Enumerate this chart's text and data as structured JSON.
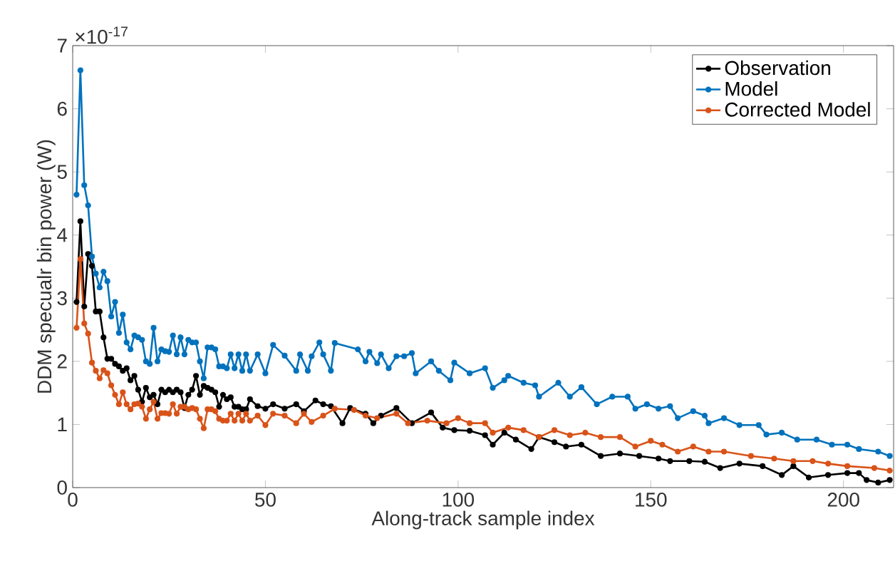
{
  "chart_data": {
    "type": "line",
    "xlabel": "Along-track sample index",
    "ylabel": "DDM specualr bin power (W)",
    "annotations": [
      "×10$^{-17}$"
    ],
    "xlim": [
      0,
      213
    ],
    "ylim": [
      0,
      7
    ],
    "xticks": [
      0,
      50,
      100,
      150,
      200
    ],
    "yticks": [
      0,
      1,
      2,
      3,
      4,
      5,
      6,
      7
    ],
    "grid": false,
    "legend": "top right",
    "marker": "circle",
    "line_style": "solid",
    "series": [
      {
        "name": "Observation",
        "color": "#000000",
        "x": [
          1,
          2,
          3,
          4,
          5,
          6,
          7,
          8,
          9,
          10,
          11,
          12,
          13,
          14,
          15,
          16,
          17,
          18,
          19,
          20,
          21,
          22,
          23,
          24,
          25,
          26,
          27,
          28,
          29,
          30,
          31,
          32,
          33,
          34,
          35,
          36,
          37,
          38,
          39,
          40,
          41,
          42,
          43,
          44,
          45,
          46,
          48,
          50,
          52,
          55,
          58,
          60,
          63,
          65,
          67,
          70,
          72,
          76,
          78,
          80,
          84,
          88,
          93,
          96,
          99,
          103,
          107,
          109,
          112,
          115,
          119,
          121,
          125,
          128,
          132,
          137,
          142,
          147,
          152,
          155,
          160,
          164,
          168,
          173,
          179,
          184,
          187,
          191,
          196,
          201,
          204,
          206,
          209,
          212
        ],
        "values": [
          2.94,
          4.22,
          2.87,
          3.7,
          3.51,
          2.79,
          2.79,
          2.38,
          2.04,
          2.04,
          1.96,
          1.92,
          1.85,
          1.89,
          1.7,
          1.77,
          1.55,
          1.36,
          1.58,
          1.43,
          1.47,
          1.32,
          1.55,
          1.51,
          1.55,
          1.51,
          1.55,
          1.51,
          1.26,
          1.47,
          1.55,
          1.77,
          1.47,
          1.61,
          1.58,
          1.55,
          1.51,
          1.28,
          1.47,
          1.4,
          1.43,
          1.28,
          1.28,
          1.24,
          1.24,
          1.4,
          1.29,
          1.25,
          1.32,
          1.25,
          1.32,
          1.21,
          1.38,
          1.32,
          1.29,
          1.02,
          1.26,
          1.17,
          1.02,
          1.14,
          1.26,
          1.02,
          1.19,
          0.95,
          0.91,
          0.9,
          0.83,
          0.68,
          0.87,
          0.76,
          0.61,
          0.8,
          0.72,
          0.65,
          0.68,
          0.5,
          0.54,
          0.5,
          0.46,
          0.42,
          0.42,
          0.41,
          0.31,
          0.38,
          0.34,
          0.2,
          0.34,
          0.16,
          0.2,
          0.23,
          0.23,
          0.12,
          0.08,
          0.12
        ]
      },
      {
        "name": "Model",
        "color": "#0072bd",
        "x": [
          1,
          2,
          3,
          4,
          5,
          6,
          7,
          8,
          9,
          10,
          11,
          12,
          13,
          14,
          15,
          16,
          17,
          18,
          19,
          20,
          21,
          22,
          23,
          24,
          25,
          26,
          27,
          28,
          29,
          30,
          31,
          32,
          33,
          34,
          35,
          36,
          37,
          38,
          39,
          40,
          41,
          42,
          43,
          44,
          45,
          46,
          48,
          50,
          52,
          55,
          58,
          59,
          61,
          62,
          64,
          65,
          67,
          68,
          74,
          76,
          77,
          79,
          80,
          82,
          84,
          86,
          88,
          89,
          93,
          95,
          98,
          99,
          103,
          107,
          109,
          112,
          113,
          117,
          120,
          121,
          126,
          129,
          132,
          136,
          140,
          144,
          146,
          149,
          152,
          155,
          157,
          161,
          164,
          165,
          169,
          173,
          178,
          180,
          184,
          188,
          193,
          197,
          201,
          204,
          209,
          212
        ],
        "values": [
          4.64,
          6.61,
          4.79,
          4.47,
          3.66,
          3.39,
          3.17,
          3.42,
          3.27,
          2.71,
          2.94,
          2.45,
          2.74,
          2.3,
          2.19,
          2.41,
          2.38,
          2.34,
          2.0,
          1.96,
          2.53,
          2.0,
          2.19,
          2.16,
          2.15,
          2.41,
          2.11,
          2.38,
          2.11,
          2.34,
          2.3,
          2.3,
          2.0,
          1.73,
          2.22,
          2.22,
          2.19,
          1.92,
          1.92,
          1.89,
          2.11,
          1.89,
          2.11,
          1.85,
          2.11,
          1.85,
          2.11,
          1.81,
          2.26,
          2.09,
          1.85,
          2.11,
          1.85,
          2.08,
          2.3,
          2.11,
          1.85,
          2.29,
          2.19,
          2.0,
          2.15,
          1.97,
          2.11,
          1.89,
          2.08,
          2.08,
          2.13,
          1.81,
          2.0,
          1.85,
          1.7,
          1.98,
          1.81,
          1.89,
          1.58,
          1.7,
          1.77,
          1.66,
          1.62,
          1.44,
          1.66,
          1.44,
          1.59,
          1.32,
          1.44,
          1.44,
          1.25,
          1.32,
          1.25,
          1.29,
          1.1,
          1.21,
          1.14,
          1.02,
          1.1,
          0.99,
          0.99,
          0.84,
          0.87,
          0.76,
          0.76,
          0.68,
          0.68,
          0.61,
          0.57,
          0.5
        ]
      },
      {
        "name": "Corrected Model",
        "color": "#d95319",
        "x": [
          1,
          2,
          3,
          4,
          5,
          6,
          7,
          8,
          9,
          10,
          11,
          12,
          13,
          14,
          15,
          16,
          17,
          18,
          19,
          20,
          21,
          22,
          23,
          24,
          25,
          26,
          27,
          28,
          29,
          30,
          31,
          32,
          33,
          34,
          35,
          36,
          37,
          38,
          39,
          40,
          41,
          42,
          43,
          44,
          45,
          46,
          48,
          50,
          52,
          55,
          58,
          60,
          62,
          65,
          68,
          73,
          76,
          79,
          84,
          87,
          92,
          97,
          100,
          103,
          107,
          109,
          113,
          117,
          121,
          125,
          129,
          133,
          137,
          142,
          146,
          150,
          153,
          157,
          161,
          165,
          169,
          176,
          182,
          187,
          192,
          196,
          201,
          208,
          212
        ],
        "values": [
          2.53,
          3.62,
          2.6,
          2.44,
          1.98,
          1.85,
          1.73,
          1.86,
          1.81,
          1.62,
          1.47,
          1.32,
          1.51,
          1.32,
          1.24,
          1.32,
          1.33,
          1.28,
          1.09,
          1.24,
          1.36,
          1.09,
          1.18,
          1.18,
          1.17,
          1.32,
          1.17,
          1.28,
          1.28,
          1.24,
          1.26,
          1.24,
          1.09,
          0.94,
          1.24,
          1.24,
          1.21,
          1.09,
          1.06,
          1.06,
          1.17,
          1.06,
          1.17,
          1.06,
          1.17,
          1.06,
          1.14,
          0.99,
          1.17,
          1.14,
          1.02,
          1.17,
          1.04,
          1.14,
          1.25,
          1.23,
          1.14,
          1.1,
          1.17,
          1.02,
          1.06,
          1.02,
          1.1,
          1.02,
          1.02,
          0.87,
          0.95,
          0.91,
          0.8,
          0.91,
          0.83,
          0.87,
          0.8,
          0.8,
          0.65,
          0.74,
          0.68,
          0.57,
          0.65,
          0.57,
          0.57,
          0.5,
          0.46,
          0.42,
          0.42,
          0.38,
          0.34,
          0.31,
          0.27
        ]
      }
    ]
  }
}
